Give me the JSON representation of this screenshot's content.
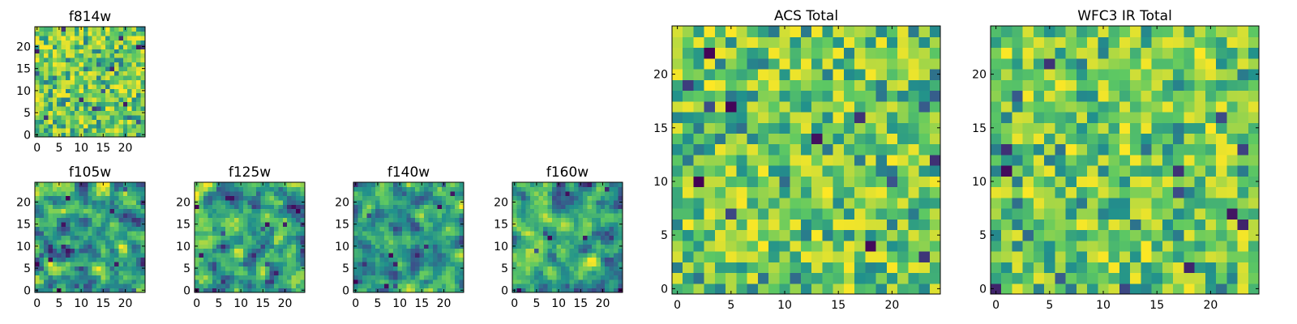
{
  "chart_data": [
    {
      "type": "heatmap",
      "title": "f814w",
      "grid_size": 25,
      "seed": 11,
      "style": "pixel",
      "x_ticks": [
        "0",
        "5",
        "10",
        "15",
        "20"
      ],
      "y_ticks": [
        "0",
        "5",
        "10",
        "15",
        "20"
      ],
      "xlim": [
        -0.5,
        24.5
      ],
      "ylim": [
        -0.5,
        24.5
      ]
    },
    {
      "type": "heatmap",
      "title": "f105w",
      "grid_size": 25,
      "seed": 23,
      "style": "smooth",
      "x_ticks": [
        "0",
        "5",
        "10",
        "15",
        "20"
      ],
      "y_ticks": [
        "0",
        "5",
        "10",
        "15",
        "20"
      ],
      "xlim": [
        -0.5,
        24.5
      ],
      "ylim": [
        -0.5,
        24.5
      ]
    },
    {
      "type": "heatmap",
      "title": "f125w",
      "grid_size": 25,
      "seed": 37,
      "style": "smooth",
      "x_ticks": [
        "0",
        "5",
        "10",
        "15",
        "20"
      ],
      "y_ticks": [
        "0",
        "5",
        "10",
        "15",
        "20"
      ],
      "xlim": [
        -0.5,
        24.5
      ],
      "ylim": [
        -0.5,
        24.5
      ]
    },
    {
      "type": "heatmap",
      "title": "f140w",
      "grid_size": 25,
      "seed": 41,
      "style": "smooth",
      "x_ticks": [
        "0",
        "5",
        "10",
        "15",
        "20"
      ],
      "y_ticks": [
        "0",
        "5",
        "10",
        "15",
        "20"
      ],
      "xlim": [
        -0.5,
        24.5
      ],
      "ylim": [
        -0.5,
        24.5
      ]
    },
    {
      "type": "heatmap",
      "title": "f160w",
      "grid_size": 25,
      "seed": 53,
      "style": "smooth",
      "x_ticks": [
        "0",
        "5",
        "10",
        "15",
        "20"
      ],
      "y_ticks": [
        "0",
        "5",
        "10",
        "15",
        "20"
      ],
      "xlim": [
        -0.5,
        24.5
      ],
      "ylim": [
        -0.5,
        24.5
      ]
    },
    {
      "type": "heatmap",
      "title": "ACS Total",
      "grid_size": 25,
      "seed": 67,
      "style": "pixel",
      "x_ticks": [
        "0",
        "5",
        "10",
        "15",
        "20"
      ],
      "y_ticks": [
        "0",
        "5",
        "10",
        "15",
        "20"
      ],
      "xlim": [
        -0.5,
        24.5
      ],
      "ylim": [
        -0.5,
        24.5
      ]
    },
    {
      "type": "heatmap",
      "title": "WFC3 IR Total",
      "grid_size": 25,
      "seed": 79,
      "style": "pixel",
      "x_ticks": [
        "0",
        "5",
        "10",
        "15",
        "20"
      ],
      "y_ticks": [
        "0",
        "5",
        "10",
        "15",
        "20"
      ],
      "xlim": [
        -0.5,
        24.5
      ],
      "ylim": [
        -0.5,
        24.5
      ]
    }
  ],
  "colormap": {
    "name": "viridis",
    "stops": [
      "#440154",
      "#3b528b",
      "#21918c",
      "#5ec962",
      "#fde725"
    ]
  }
}
